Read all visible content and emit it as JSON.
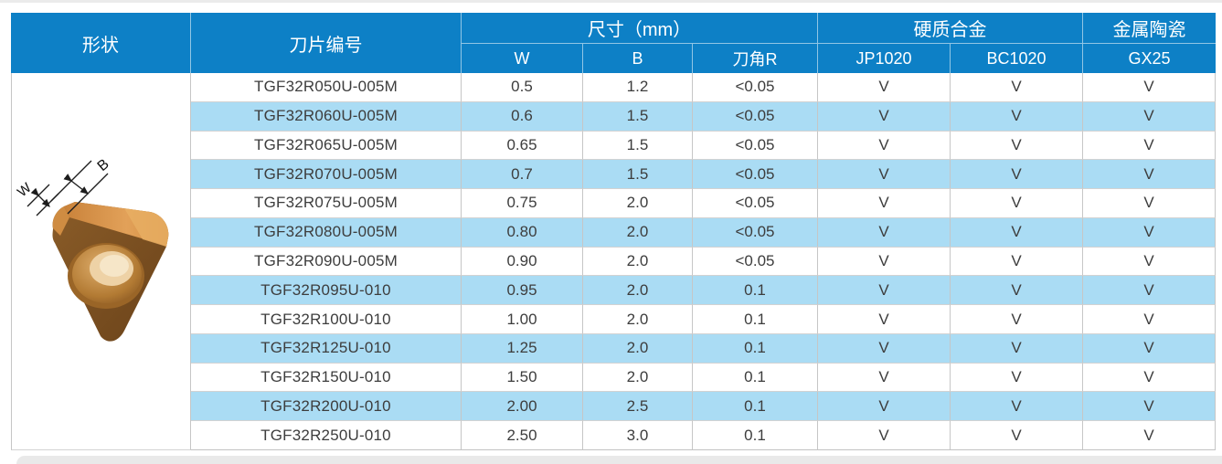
{
  "table": {
    "headers": {
      "shape": "形状",
      "model": "刀片编号",
      "size_group": "尺寸（mm）",
      "w": "W",
      "b": "B",
      "r": "刀角R",
      "carbide_group": "硬质合金",
      "jp1020": "JP1020",
      "bc1020": "BC1020",
      "cermet_group": "金属陶瓷",
      "gx25": "GX25"
    },
    "rows": [
      {
        "model": "TGF32R050U-005M",
        "w": "0.5",
        "b": "1.2",
        "r": "<0.05",
        "jp1020": "V",
        "bc1020": "V",
        "gx25": "V"
      },
      {
        "model": "TGF32R060U-005M",
        "w": "0.6",
        "b": "1.5",
        "r": "<0.05",
        "jp1020": "V",
        "bc1020": "V",
        "gx25": "V"
      },
      {
        "model": "TGF32R065U-005M",
        "w": "0.65",
        "b": "1.5",
        "r": "<0.05",
        "jp1020": "V",
        "bc1020": "V",
        "gx25": "V"
      },
      {
        "model": "TGF32R070U-005M",
        "w": "0.7",
        "b": "1.5",
        "r": "<0.05",
        "jp1020": "V",
        "bc1020": "V",
        "gx25": "V"
      },
      {
        "model": "TGF32R075U-005M",
        "w": "0.75",
        "b": "2.0",
        "r": "<0.05",
        "jp1020": "V",
        "bc1020": "V",
        "gx25": "V"
      },
      {
        "model": "TGF32R080U-005M",
        "w": "0.80",
        "b": "2.0",
        "r": "<0.05",
        "jp1020": "V",
        "bc1020": "V",
        "gx25": "V"
      },
      {
        "model": "TGF32R090U-005M",
        "w": "0.90",
        "b": "2.0",
        "r": "<0.05",
        "jp1020": "V",
        "bc1020": "V",
        "gx25": "V"
      },
      {
        "model": "TGF32R095U-010",
        "w": "0.95",
        "b": "2.0",
        "r": "0.1",
        "jp1020": "V",
        "bc1020": "V",
        "gx25": "V"
      },
      {
        "model": "TGF32R100U-010",
        "w": "1.00",
        "b": "2.0",
        "r": "0.1",
        "jp1020": "V",
        "bc1020": "V",
        "gx25": "V"
      },
      {
        "model": "TGF32R125U-010",
        "w": "1.25",
        "b": "2.0",
        "r": "0.1",
        "jp1020": "V",
        "bc1020": "V",
        "gx25": "V"
      },
      {
        "model": "TGF32R150U-010",
        "w": "1.50",
        "b": "2.0",
        "r": "0.1",
        "jp1020": "V",
        "bc1020": "V",
        "gx25": "V"
      },
      {
        "model": "TGF32R200U-010",
        "w": "2.00",
        "b": "2.5",
        "r": "0.1",
        "jp1020": "V",
        "bc1020": "V",
        "gx25": "V"
      },
      {
        "model": "TGF32R250U-010",
        "w": "2.50",
        "b": "3.0",
        "r": "0.1",
        "jp1020": "V",
        "bc1020": "V",
        "gx25": "V"
      }
    ]
  },
  "shape_figure": {
    "dim_label_w": "W",
    "dim_label_b": "B"
  },
  "colors": {
    "header_blue": "#0d80c6",
    "stripe_blue": "#aadcf4",
    "insert_body_dark": "#6f451a",
    "insert_face_bronze": "#d98c3e",
    "hole_highlight": "#eed2a6"
  }
}
